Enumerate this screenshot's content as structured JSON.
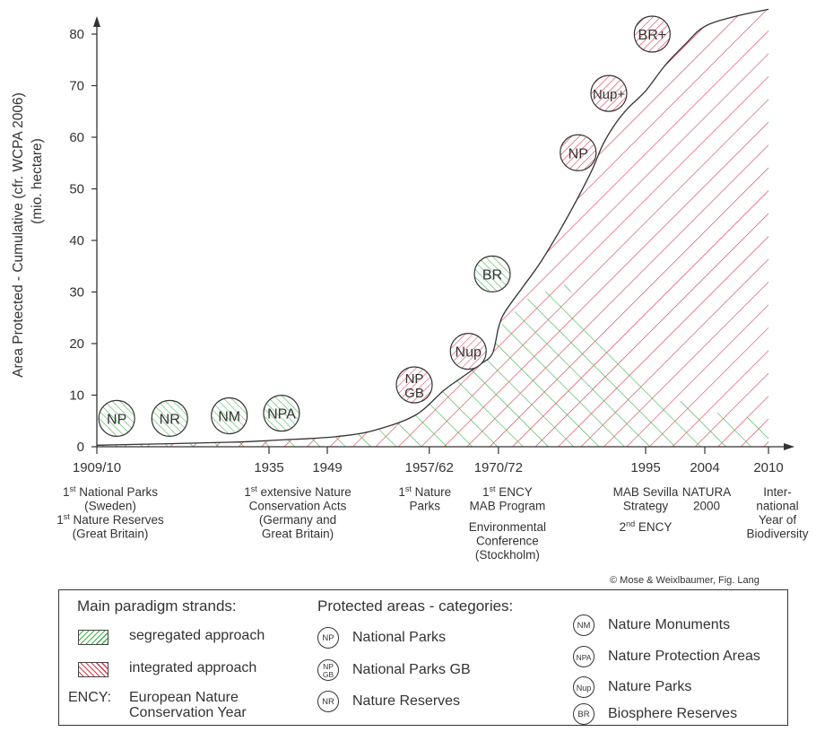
{
  "chart_data": {
    "type": "area",
    "ylabel_line1": "Area Protected - Cumulative (cfr. WCPA 2006)",
    "ylabel_line2": "(mio. hectare)",
    "ylim": [
      0,
      85
    ],
    "y_ticks": [
      0,
      10,
      20,
      30,
      40,
      50,
      60,
      70,
      80
    ],
    "x_ticks": [
      "1909/10",
      "1935",
      "1949",
      "1957/62",
      "1970/72",
      "1995",
      "2004",
      "2010"
    ],
    "series": [
      {
        "x": [
          1909,
          1920,
          1930,
          1935,
          1940,
          1945,
          1950,
          1953,
          1957,
          1962,
          1965,
          1968,
          1970,
          1971,
          1972,
          1975,
          1978,
          1982,
          1986,
          1988,
          1990,
          1992,
          1995,
          1998,
          2001,
          2004,
          2007,
          2010
        ],
        "values": [
          0.3,
          0.6,
          0.9,
          1.2,
          1.4,
          1.6,
          2.0,
          3.0,
          6.0,
          11.0,
          13.5,
          16.0,
          18.0,
          23.0,
          26.0,
          31.0,
          36.0,
          44.0,
          53.0,
          58.5,
          62.5,
          65.5,
          69.0,
          74.0,
          78.0,
          81.5,
          83.5,
          84.8
        ]
      }
    ],
    "strand_split": {
      "segregated_peak": 31.5,
      "segregated_peak_year": 1982
    },
    "events": [
      {
        "code": "NP",
        "type": "segregated",
        "year": 1912,
        "y": 5.5
      },
      {
        "code": "NR",
        "type": "segregated",
        "year": 1920,
        "y": 5.5
      },
      {
        "code": "NM",
        "type": "segregated",
        "year": 1929,
        "y": 6.0
      },
      {
        "code": "NPA",
        "type": "segregated",
        "year": 1938,
        "y": 6.5
      },
      {
        "code": "NP\nGB",
        "type": "integrated",
        "year": 1957,
        "y": 12.0
      },
      {
        "code": "Nup",
        "type": "integrated",
        "year": 1966,
        "y": 18.5
      },
      {
        "code": "BR",
        "type": "segregated",
        "year": 1970,
        "y": 33.5
      },
      {
        "code": "NP",
        "type": "integrated",
        "year": 1984,
        "y": 57.0
      },
      {
        "code": "Nup+",
        "type": "integrated",
        "year": 1989,
        "y": 68.5
      },
      {
        "code": "BR+",
        "type": "integrated",
        "year": 1996,
        "y": 80.0
      }
    ],
    "annotations": [
      {
        "year": 1909,
        "lines": [
          "1st National Parks",
          "(Sweden)",
          "1st Nature Reserves",
          "(Great Britain)"
        ]
      },
      {
        "year": 1940,
        "lines": [
          "1st extensive Nature",
          "Conservation Acts",
          "(Germany and",
          "Great Britain)"
        ]
      },
      {
        "year": 1959,
        "lines": [
          "1st Nature",
          "Parks"
        ]
      },
      {
        "year": 1970,
        "lines": [
          "1st ENCY",
          "MAB Program",
          "",
          "Environmental",
          "Conference",
          "(Stockholm)"
        ]
      },
      {
        "year": 1995,
        "lines": [
          "MAB Sevilla",
          "Strategy",
          "",
          "2nd ENCY"
        ]
      },
      {
        "year": 2004,
        "lines": [
          "NATURA",
          "2000"
        ]
      },
      {
        "year": 2010,
        "lines": [
          "Inter-",
          "national",
          "Year of",
          "Biodiversity"
        ]
      }
    ],
    "credit": "© Mose & Weixlbaumer, Fig. Lang"
  },
  "legend": {
    "paradigm_title": "Main paradigm strands:",
    "segregated_label": "segregated approach",
    "integrated_label": "integrated approach",
    "ency_abbr": "ENCY:",
    "ency_line1": "European Nature",
    "ency_line2": "Conservation Year",
    "categories_title": "Protected areas - categories:",
    "categories": [
      {
        "badge": "NP",
        "label": "National Parks"
      },
      {
        "badge": "NP GB",
        "label": "National Parks GB"
      },
      {
        "badge": "NR",
        "label": "Nature Reserves"
      },
      {
        "badge": "NM",
        "label": "Nature Monuments"
      },
      {
        "badge": "NPA",
        "label": "Nature Protection Areas"
      },
      {
        "badge": "Nup",
        "label": "Nature Parks"
      },
      {
        "badge": "BR",
        "label": "Biosphere Reserves"
      }
    ],
    "colors": {
      "segregated": "#3cb043",
      "integrated": "#d9364b",
      "axis": "#333333"
    }
  }
}
